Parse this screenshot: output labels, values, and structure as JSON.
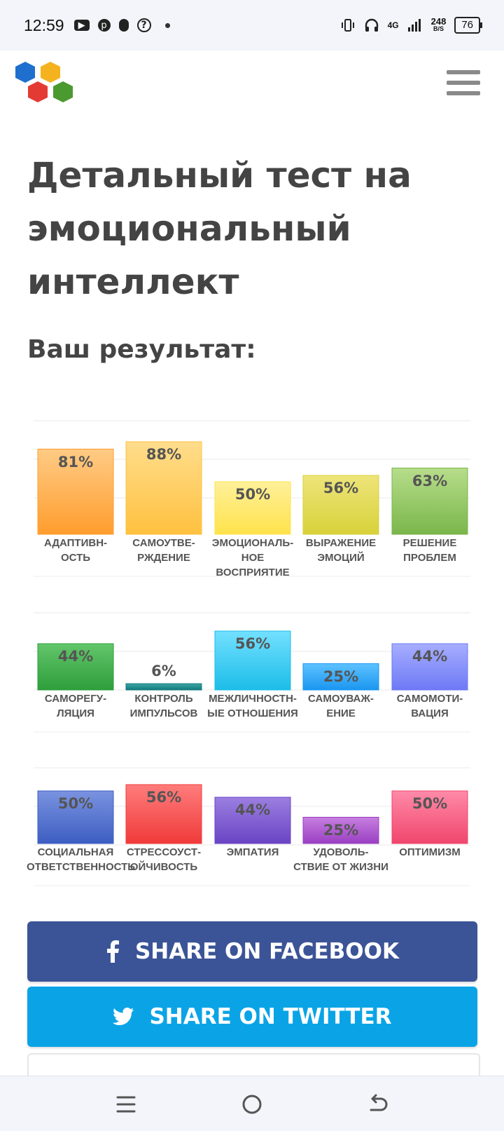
{
  "status_bar": {
    "time": "12:59",
    "left_icons": [
      "youtube-icon",
      "pinterest-icon",
      "mic-icon",
      "help-icon",
      "dot"
    ],
    "right_icons": [
      "vibrate-icon",
      "headphones-icon",
      "signal-icon"
    ],
    "network": "4G",
    "speed_value": "248",
    "speed_unit": "B/S",
    "battery": "76"
  },
  "header": {
    "logo_icon": "hexagon-logo-icon",
    "menu_icon": "hamburger-menu-icon"
  },
  "page": {
    "title": "Детальный тест на эмоциональный интеллект",
    "result_heading": "Ваш результат:"
  },
  "chart_data": [
    {
      "type": "bar",
      "categories": [
        "АДАПТИВН-\nОСТЬ",
        "САМОУТВЕ-\nРЖДЕНИЕ",
        "ЭМОЦИОНАЛЬ-\nНОЕ ВОСПРИЯТИЕ",
        "ВЫРАЖЕНИЕ\nЭМОЦИЙ",
        "РЕШЕНИЕ\nПРОБЛЕМ"
      ],
      "values": [
        81,
        88,
        50,
        56,
        63
      ],
      "value_labels": [
        "81%",
        "88%",
        "50%",
        "56%",
        "63%"
      ],
      "colors": [
        [
          "#ffcb85",
          "#ff9d2e"
        ],
        [
          "#ffdd8c",
          "#ffc13f"
        ],
        [
          "#fff09a",
          "#ffe34b"
        ],
        [
          "#eee47a",
          "#d7d23a"
        ],
        [
          "#b7dd8b",
          "#7ab64b"
        ]
      ],
      "ylim": [
        0,
        100
      ],
      "grid": true
    },
    {
      "type": "bar",
      "categories": [
        "САМОРЕГУ-\nЛЯЦИЯ",
        "КОНТРОЛЬ\nИМПУЛЬСОВ",
        "МЕЖЛИЧНОСТН-\nЫЕ ОТНОШЕНИЯ",
        "САМОУВАЖ-\nЕНИЕ",
        "САМОМОТИ-\nВАЦИЯ"
      ],
      "values": [
        44,
        6,
        56,
        25,
        44
      ],
      "value_labels": [
        "44%",
        "6%",
        "56%",
        "25%",
        "44%"
      ],
      "colors": [
        [
          "#62c66a",
          "#2e9e3b"
        ],
        [
          "#3ba6a6",
          "#137a7c"
        ],
        [
          "#73e0ff",
          "#1cbde8"
        ],
        [
          "#5ec2ff",
          "#1a96f0"
        ],
        [
          "#a7aeff",
          "#6d79f5"
        ]
      ],
      "ylim": [
        0,
        100
      ],
      "grid": true
    },
    {
      "type": "bar",
      "categories": [
        "СОЦИАЛЬНАЯ\nОТВЕТСТВЕННОСТЬ",
        "СТРЕССОУСТ-\nОЙЧИВОСТЬ",
        "ЭМПАТИЯ",
        "УДОВОЛЬ-\nСТВИЕ ОТ ЖИЗНИ",
        "ОПТИМИЗМ"
      ],
      "values": [
        50,
        56,
        44,
        25,
        50
      ],
      "value_labels": [
        "50%",
        "56%",
        "44%",
        "25%",
        "50%"
      ],
      "colors": [
        [
          "#7a93e0",
          "#3d5ec2"
        ],
        [
          "#ff7c7c",
          "#f03a3a"
        ],
        [
          "#9b7fe0",
          "#6a44c5"
        ],
        [
          "#c77fe0",
          "#9a3fc2"
        ],
        [
          "#ff8aa8",
          "#f0466c"
        ]
      ],
      "ylim": [
        0,
        100
      ],
      "grid": true
    }
  ],
  "share": {
    "facebook_label": "SHARE ON FACEBOOK",
    "facebook_icon": "facebook-icon",
    "twitter_label": "SHARE ON TWITTER",
    "twitter_icon": "twitter-icon"
  },
  "nav_bar": {
    "icons": [
      "recent-apps-icon",
      "home-icon",
      "back-icon"
    ]
  }
}
